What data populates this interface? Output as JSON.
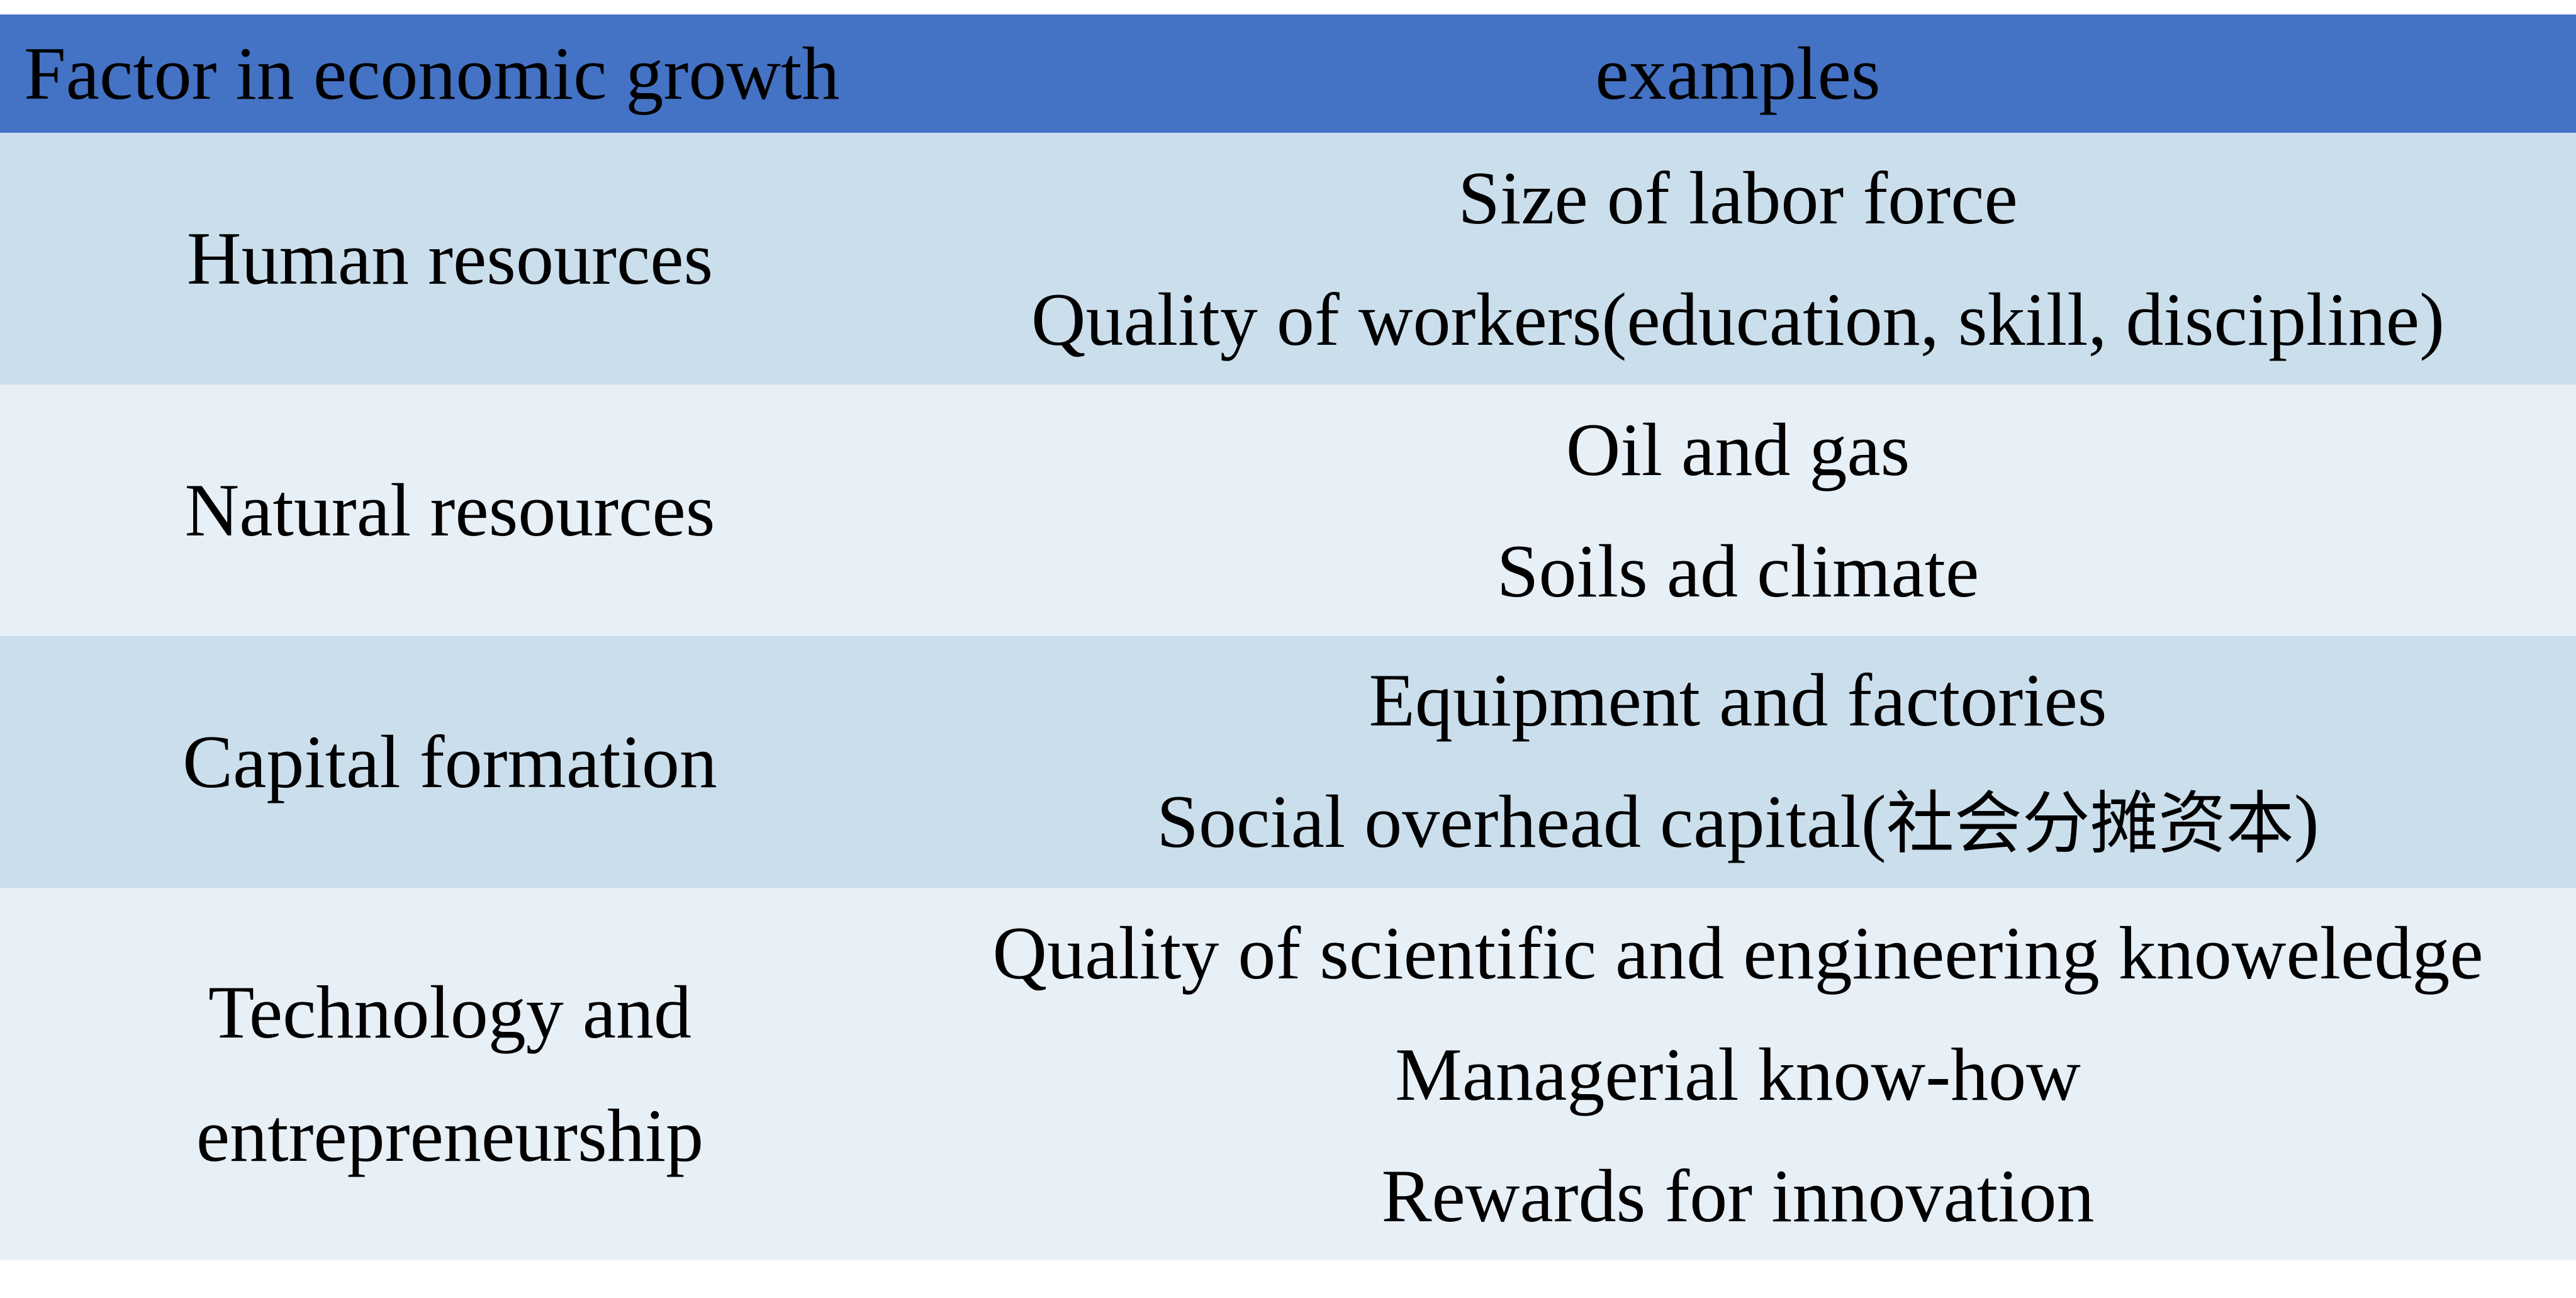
{
  "table": {
    "header": {
      "factor": "Factor in economic growth",
      "examples": "examples"
    },
    "colors": {
      "header_bg": "#4472C4",
      "band_dark": "#CBDEEC",
      "band_light": "#E7EFF7",
      "text": "#000000"
    },
    "rows": [
      {
        "factor": [
          "Human resources"
        ],
        "examples": [
          "Size of labor force",
          "Quality of workers(education, skill, discipline)"
        ]
      },
      {
        "factor": [
          "Natural resources"
        ],
        "examples": [
          "Oil and gas",
          "Soils ad climate"
        ]
      },
      {
        "factor": [
          "Capital formation"
        ],
        "examples": [
          "Equipment and factories",
          "Social overhead capital(社会分摊资本)"
        ]
      },
      {
        "factor": [
          "Technology and",
          "entrepreneurship"
        ],
        "examples": [
          "Quality of scientific and engineering knoweledge",
          "Managerial know-how",
          "Rewards for innovation"
        ]
      }
    ]
  }
}
